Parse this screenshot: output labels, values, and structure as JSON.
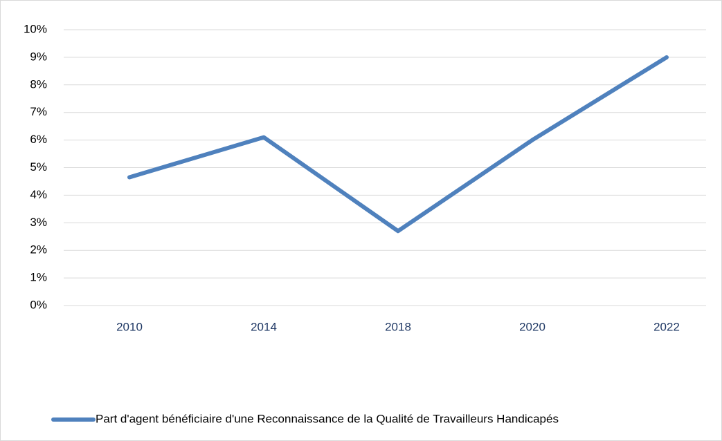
{
  "chart_data": {
    "type": "line",
    "categories": [
      "2010",
      "2014",
      "2018",
      "2020",
      "2022"
    ],
    "series": [
      {
        "name": "Part d'agent bénéficiaire d'une Reconnaissance de la Qualité de Travailleurs Handicapés",
        "color": "#4f81bd",
        "values": [
          4.65,
          6.1,
          2.7,
          6.0,
          9.0
        ]
      }
    ],
    "ylim": [
      0,
      10
    ],
    "yticks": [
      {
        "value": 0,
        "label": "0%"
      },
      {
        "value": 1,
        "label": "1%"
      },
      {
        "value": 2,
        "label": "2%"
      },
      {
        "value": 3,
        "label": "3%"
      },
      {
        "value": 4,
        "label": "4%"
      },
      {
        "value": 5,
        "label": "5%"
      },
      {
        "value": 6,
        "label": "6%"
      },
      {
        "value": 7,
        "label": "7%"
      },
      {
        "value": 8,
        "label": "8%"
      },
      {
        "value": 9,
        "label": "9%"
      },
      {
        "value": 10,
        "label": "10%"
      }
    ],
    "grid": true,
    "legend": "bottom"
  }
}
